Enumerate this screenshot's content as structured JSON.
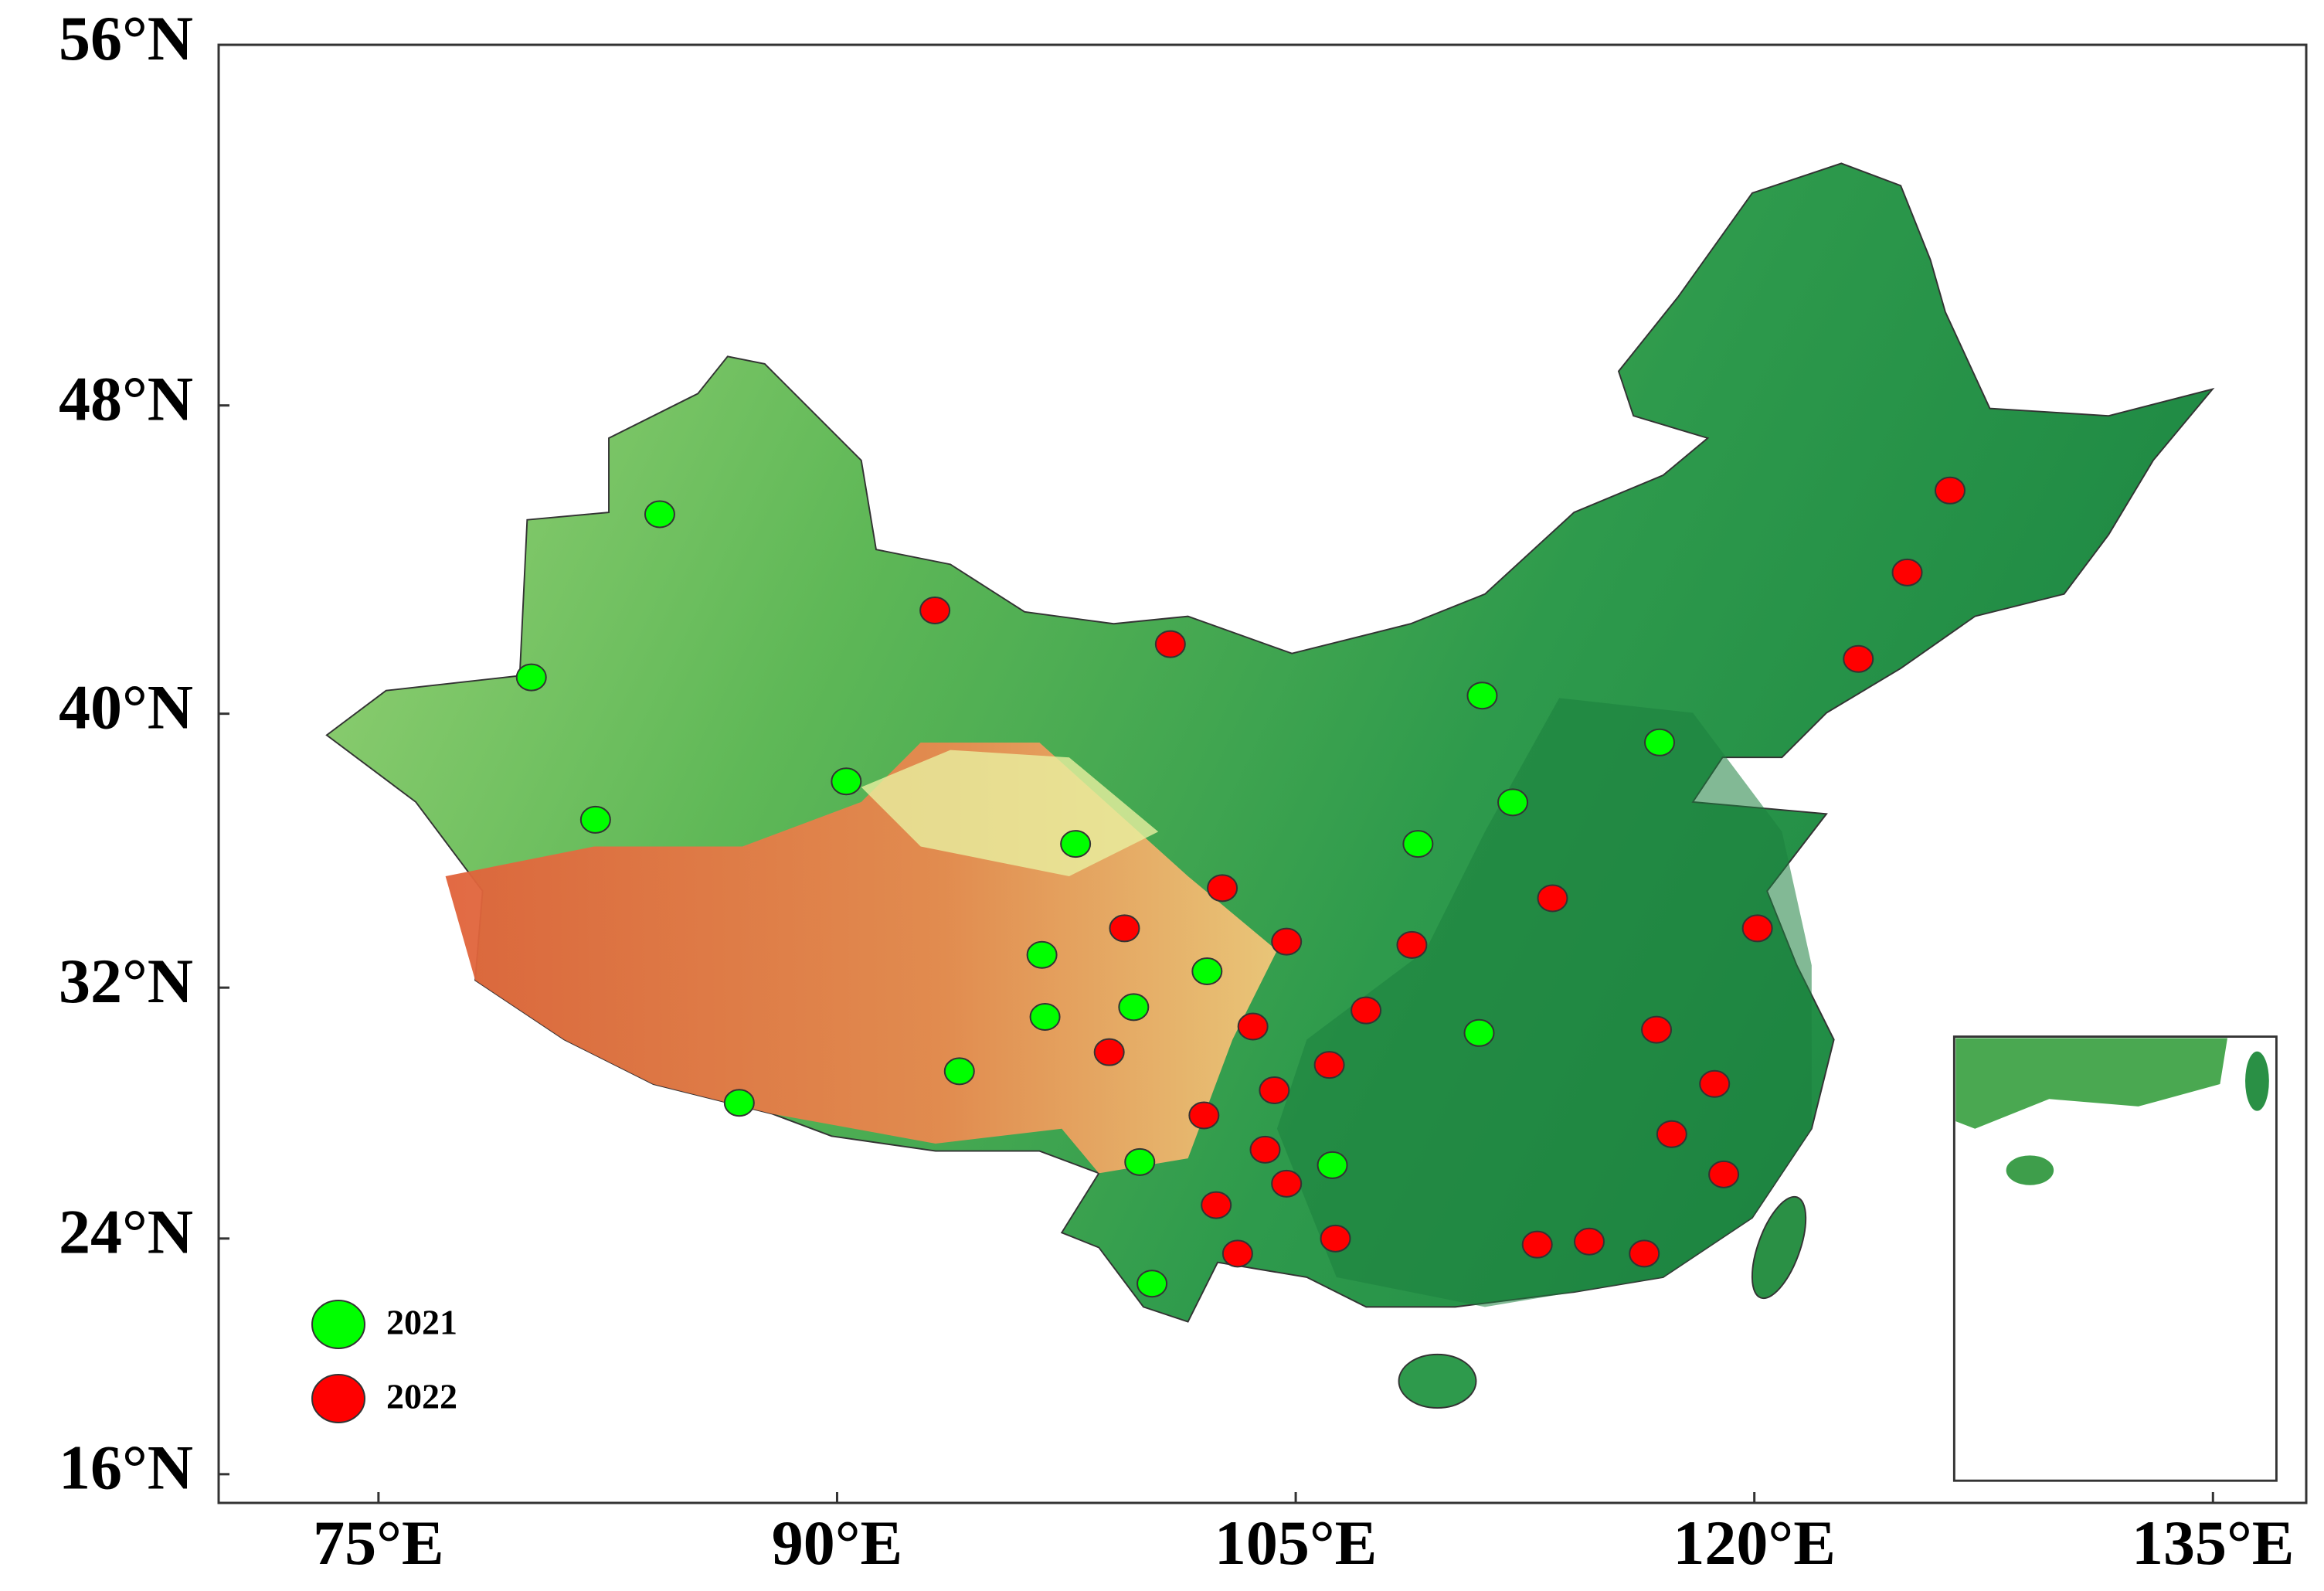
{
  "chart_data": {
    "type": "scatter",
    "y_scale": "mercator",
    "xlim": [
      70,
      138
    ],
    "ylim": [
      15,
      56
    ],
    "xticks": [
      {
        "value": 75,
        "label": "75°E"
      },
      {
        "value": 90,
        "label": "90°E"
      },
      {
        "value": 105,
        "label": "105°E"
      },
      {
        "value": 120,
        "label": "120°E"
      },
      {
        "value": 135,
        "label": "135°E"
      }
    ],
    "yticks": [
      {
        "value": 16,
        "label": "16°N"
      },
      {
        "value": 24,
        "label": "24°N"
      },
      {
        "value": 32,
        "label": "32°N"
      },
      {
        "value": 40,
        "label": "40°N"
      },
      {
        "value": 48,
        "label": "48°N"
      },
      {
        "value": 56,
        "label": "56°N"
      }
    ],
    "legend": "lower left",
    "series": [
      {
        "name": "2021",
        "color": "#00ff00",
        "x": [
          84.2,
          80.0,
          82.1,
          90.3,
          97.8,
          96.7,
          102.1,
          96.8,
          99.7,
          94.0,
          86.8,
          99.9,
          100.3,
          106.2,
          109.0,
          111.1,
          112.1,
          116.9,
          111.0
        ],
        "values": [
          45.3,
          41.0,
          37.0,
          38.1,
          36.3,
          33.0,
          32.5,
          31.1,
          31.4,
          29.4,
          28.4,
          26.5,
          22.5,
          26.4,
          36.3,
          40.5,
          37.5,
          39.2,
          30.6
        ]
      },
      {
        "name": "2022",
        "color": "#ff0000",
        "x": [
          93.2,
          100.9,
          102.6,
          99.4,
          104.7,
          108.8,
          113.4,
          120.1,
          126.4,
          125.0,
          123.4,
          103.6,
          107.3,
          98.9,
          106.1,
          104.3,
          102.0,
          104.0,
          104.7,
          102.4,
          103.1,
          106.3,
          116.8,
          118.7,
          117.3,
          119.0,
          112.9,
          114.6,
          116.4
        ],
        "values": [
          42.8,
          41.9,
          35.0,
          33.8,
          33.4,
          33.3,
          34.7,
          33.8,
          45.9,
          43.8,
          41.5,
          30.8,
          31.3,
          30.0,
          29.6,
          28.8,
          28.0,
          26.9,
          25.8,
          25.1,
          23.5,
          24.0,
          30.7,
          29.0,
          27.4,
          26.1,
          23.8,
          23.9,
          23.5
        ]
      }
    ]
  }
}
